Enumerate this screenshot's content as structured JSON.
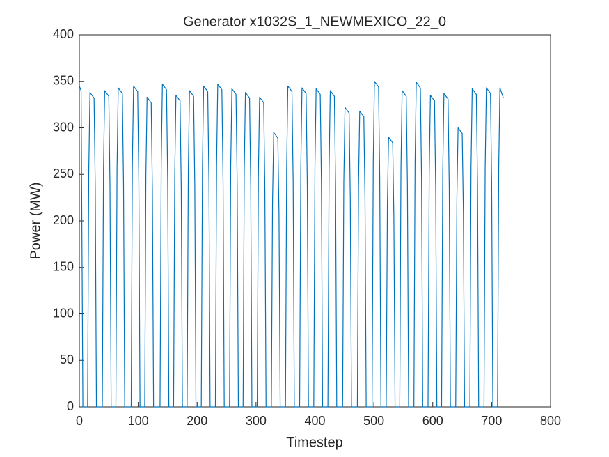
{
  "chart_data": {
    "type": "line",
    "title": "Generator x1032S_1_NEWMEXICO_22_0",
    "x_label": "Timestep",
    "y_label": "Power (MW)",
    "color": "#0072bd",
    "xlim": [
      0,
      800
    ],
    "xticks": [
      0,
      100,
      200,
      300,
      400,
      500,
      600,
      700,
      800
    ],
    "ylim": [
      0,
      400
    ],
    "yticks": [
      0,
      50,
      100,
      150,
      200,
      250,
      300,
      350,
      400
    ],
    "x": [
      0,
      3,
      6,
      14,
      16,
      18,
      25,
      27,
      29,
      39,
      41,
      43,
      50,
      52,
      54,
      62,
      64,
      66,
      73,
      75,
      77,
      88,
      90,
      92,
      99,
      101,
      103,
      111,
      113,
      115,
      122,
      124,
      126,
      137,
      139,
      141,
      148,
      150,
      152,
      160,
      162,
      164,
      171,
      173,
      175,
      183,
      185,
      187,
      194,
      196,
      198,
      207,
      209,
      211,
      218,
      220,
      222,
      231,
      233,
      235,
      242,
      244,
      246,
      255,
      257,
      259,
      266,
      268,
      270,
      278,
      280,
      282,
      289,
      291,
      293,
      302,
      304,
      306,
      313,
      315,
      317,
      326,
      328,
      330,
      337,
      339,
      341,
      350,
      352,
      354,
      361,
      363,
      365,
      374,
      376,
      378,
      385,
      387,
      389,
      398,
      400,
      402,
      409,
      411,
      413,
      422,
      424,
      426,
      433,
      435,
      437,
      447,
      449,
      451,
      458,
      460,
      462,
      472,
      474,
      476,
      483,
      485,
      487,
      497,
      499,
      501,
      508,
      510,
      512,
      521,
      523,
      525,
      532,
      534,
      536,
      544,
      546,
      548,
      555,
      557,
      559,
      568,
      570,
      572,
      579,
      581,
      583,
      592,
      594,
      596,
      603,
      605,
      607,
      615,
      617,
      619,
      626,
      628,
      630,
      639,
      641,
      643,
      650,
      652,
      654,
      663,
      665,
      667,
      674,
      676,
      678,
      687,
      689,
      691,
      698,
      700,
      702,
      710,
      712,
      714,
      720
    ],
    "values": [
      345,
      340,
      0,
      0,
      254,
      338,
      332,
      237,
      0,
      0,
      255,
      340,
      334,
      238,
      0,
      0,
      257,
      343,
      337,
      240,
      0,
      0,
      259,
      345,
      339,
      242,
      0,
      0,
      250,
      333,
      327,
      233,
      0,
      0,
      260,
      347,
      341,
      243,
      0,
      0,
      251,
      335,
      329,
      235,
      0,
      0,
      255,
      340,
      334,
      238,
      0,
      0,
      259,
      345,
      339,
      242,
      0,
      0,
      260,
      347,
      341,
      243,
      0,
      0,
      257,
      342,
      336,
      239,
      0,
      0,
      254,
      338,
      332,
      237,
      0,
      0,
      250,
      333,
      327,
      233,
      0,
      0,
      221,
      295,
      289,
      207,
      0,
      0,
      259,
      345,
      339,
      242,
      0,
      0,
      257,
      343,
      337,
      240,
      0,
      0,
      257,
      342,
      336,
      239,
      0,
      0,
      255,
      340,
      334,
      238,
      0,
      0,
      242,
      322,
      316,
      225,
      0,
      0,
      239,
      318,
      312,
      223,
      0,
      0,
      263,
      350,
      344,
      245,
      0,
      0,
      218,
      290,
      284,
      203,
      0,
      0,
      255,
      340,
      334,
      238,
      0,
      0,
      262,
      349,
      343,
      244,
      0,
      0,
      251,
      335,
      329,
      235,
      0,
      0,
      253,
      337,
      331,
      236,
      0,
      0,
      225,
      300,
      294,
      210,
      0,
      0,
      257,
      342,
      336,
      239,
      0,
      0,
      257,
      343,
      337,
      240,
      0,
      0,
      257,
      343,
      332
    ]
  }
}
